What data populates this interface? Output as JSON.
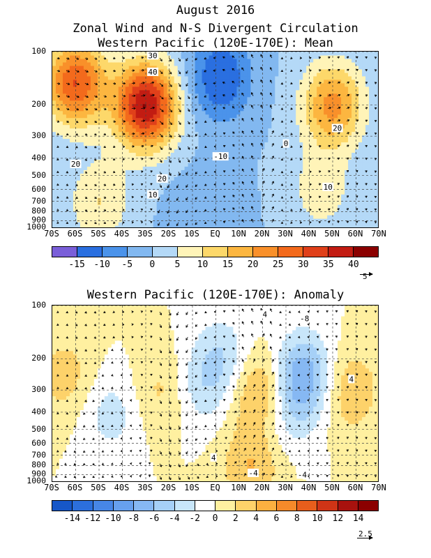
{
  "titles": {
    "line1": "August 2016",
    "line2": "Zonal Wind and N-S Divergent Circulation",
    "line3": "Western Pacific (120E-170E): Mean",
    "panel2": "Western Pacific (120E-170E): Anomaly"
  },
  "colors": {
    "neg_deep": "#0a3fbe",
    "pos_deep": "#8b0000",
    "contour": "#000000",
    "grid": "#444444"
  },
  "chart_data": [
    {
      "type": "heatmap",
      "title": "Western Pacific (120E-170E): Mean",
      "x_tick_labels": [
        "70S",
        "60S",
        "50S",
        "40S",
        "30S",
        "20S",
        "10S",
        "EQ",
        "10N",
        "20N",
        "30N",
        "40N",
        "50N",
        "60N",
        "70N"
      ],
      "x_range": [
        -70,
        70
      ],
      "y_tick_labels": [
        "100",
        "200",
        "300",
        "400",
        "500",
        "600",
        "700",
        "800",
        "900",
        "1000"
      ],
      "y_range_hpa": [
        1000,
        100
      ],
      "y_scale": "log",
      "grid": true,
      "colorbar": {
        "levels": [
          "-15",
          "-10",
          "-5",
          "0",
          "5",
          "10",
          "15",
          "20",
          "25",
          "30",
          "35",
          "40"
        ],
        "colors": [
          "#7a5fd9",
          "#2a6fe0",
          "#4b93ea",
          "#82b8f0",
          "#b4d9f7",
          "#fff4b8",
          "#fdd86a",
          "#fcb640",
          "#f9902a",
          "#f36a1c",
          "#e0401a",
          "#c21c12",
          "#8b0000"
        ]
      },
      "vector_reference": "5",
      "contour_labels": [
        {
          "text": "30",
          "lat": -27,
          "p": 105
        },
        {
          "text": "40",
          "lat": -27,
          "p": 130
        },
        {
          "text": "20",
          "lat": -60,
          "p": 430
        },
        {
          "text": "20",
          "lat": -23,
          "p": 520
        },
        {
          "text": "10",
          "lat": -27,
          "p": 640
        },
        {
          "text": "-10",
          "lat": 2,
          "p": 390
        },
        {
          "text": "0",
          "lat": 30,
          "p": 330
        },
        {
          "text": "20",
          "lat": 52,
          "p": 270
        },
        {
          "text": "10",
          "lat": 48,
          "p": 580
        }
      ],
      "features": [
        {
          "name": "SH jet core",
          "lat": -30,
          "p": 200,
          "value": 40
        },
        {
          "name": "SH upper westerlies",
          "lat": -60,
          "p": 150,
          "value": 30
        },
        {
          "name": "SH lower westerlies",
          "lat": -50,
          "p": 700,
          "value": 10
        },
        {
          "name": "tropical easterlies",
          "lat": 2,
          "p": 140,
          "value": -15
        },
        {
          "name": "low-level easterlies",
          "lat": -5,
          "p": 850,
          "value": -5
        },
        {
          "name": "NH jet core",
          "lat": 50,
          "p": 200,
          "value": 22
        },
        {
          "name": "NH lower westerlies",
          "lat": 45,
          "p": 600,
          "value": 8
        }
      ]
    },
    {
      "type": "heatmap",
      "title": "Western Pacific (120E-170E): Anomaly",
      "x_tick_labels": [
        "70S",
        "60S",
        "50S",
        "40S",
        "30S",
        "20S",
        "10S",
        "EQ",
        "10N",
        "20N",
        "30N",
        "40N",
        "50N",
        "60N",
        "70N"
      ],
      "x_range": [
        -70,
        70
      ],
      "y_tick_labels": [
        "100",
        "200",
        "300",
        "400",
        "500",
        "600",
        "700",
        "800",
        "900",
        "1000"
      ],
      "y_range_hpa": [
        1000,
        100
      ],
      "y_scale": "log",
      "grid": true,
      "colorbar": {
        "levels": [
          "-14",
          "-12",
          "-10",
          "-8",
          "-6",
          "-4",
          "-2",
          "0",
          "2",
          "4",
          "6",
          "8",
          "10",
          "12",
          "14"
        ],
        "colors": [
          "#1657c8",
          "#2c6fdc",
          "#4786e6",
          "#67a0ee",
          "#86b8f3",
          "#a6d0f7",
          "#c8e6fa",
          "#ffffff",
          "#fff0a0",
          "#fdd26a",
          "#fbb040",
          "#f68a2a",
          "#e85e1c",
          "#cf3416",
          "#a8120e",
          "#8b0000"
        ]
      },
      "vector_reference": "2.5",
      "contour_labels": [
        {
          "text": "4",
          "lat": 21,
          "p": 112
        },
        {
          "text": "-8",
          "lat": 38,
          "p": 118
        },
        {
          "text": "4",
          "lat": 58,
          "p": 260
        },
        {
          "text": "4",
          "lat": -1,
          "p": 720
        },
        {
          "text": "-4",
          "lat": 16,
          "p": 880
        },
        {
          "text": "-4",
          "lat": 37,
          "p": 900
        }
      ],
      "features": [
        {
          "name": "positive anomaly 20N",
          "lat": 20,
          "p": 300,
          "value": 6
        },
        {
          "name": "positive anomaly 20N low",
          "lat": 15,
          "p": 800,
          "value": 4
        },
        {
          "name": "negative anomaly 40N",
          "lat": 37,
          "p": 250,
          "value": -8
        },
        {
          "name": "positive anomaly 55N",
          "lat": 57,
          "p": 300,
          "value": 4
        },
        {
          "name": "positive anomaly 20S",
          "lat": -22,
          "p": 300,
          "value": 3
        },
        {
          "name": "positive anomaly 65S",
          "lat": -64,
          "p": 250,
          "value": 3
        },
        {
          "name": "negative anomaly 45S",
          "lat": -45,
          "p": 400,
          "value": -3
        },
        {
          "name": "negative anomaly 5N upper",
          "lat": 3,
          "p": 200,
          "value": -4
        },
        {
          "name": "negative anomaly 10S",
          "lat": -8,
          "p": 300,
          "value": -3
        },
        {
          "name": "negative anomaly 30N",
          "lat": 30,
          "p": 400,
          "value": -3
        }
      ]
    }
  ]
}
